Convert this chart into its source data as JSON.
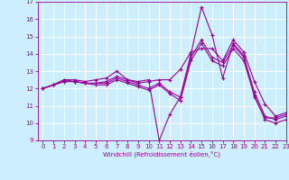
{
  "xlabel": "Windchill (Refroidissement éolien,°C)",
  "x": [
    0,
    1,
    2,
    3,
    4,
    5,
    6,
    7,
    8,
    9,
    10,
    11,
    12,
    13,
    14,
    15,
    16,
    17,
    18,
    19,
    20,
    21,
    22,
    23
  ],
  "line1": [
    12.0,
    12.2,
    12.5,
    12.5,
    12.4,
    12.5,
    12.6,
    13.0,
    12.5,
    12.4,
    12.5,
    9.0,
    10.5,
    11.5,
    14.0,
    16.7,
    15.1,
    12.6,
    14.6,
    13.9,
    11.5,
    10.3,
    10.3,
    10.5
  ],
  "line2": [
    12.0,
    12.2,
    12.5,
    12.4,
    12.3,
    12.3,
    12.3,
    12.6,
    12.4,
    12.2,
    12.0,
    12.3,
    11.8,
    11.5,
    13.8,
    14.8,
    13.8,
    13.5,
    14.5,
    13.8,
    11.8,
    10.4,
    10.2,
    10.4
  ],
  "line3": [
    12.0,
    12.2,
    12.4,
    12.4,
    12.3,
    12.3,
    12.4,
    12.7,
    12.5,
    12.3,
    12.4,
    12.5,
    12.5,
    13.1,
    14.1,
    14.3,
    14.3,
    13.6,
    14.8,
    14.1,
    12.4,
    11.1,
    10.4,
    10.6
  ],
  "line4": [
    12.0,
    12.2,
    12.4,
    12.4,
    12.3,
    12.2,
    12.2,
    12.5,
    12.3,
    12.1,
    11.9,
    12.2,
    11.7,
    11.3,
    13.6,
    14.6,
    13.6,
    13.3,
    14.3,
    13.6,
    11.6,
    10.2,
    10.0,
    10.2
  ],
  "line_color": "#990099",
  "background_color": "#cceeff",
  "grid_color": "#ffffff",
  "ylim": [
    9,
    17
  ],
  "xlim": [
    -0.5,
    23
  ],
  "yticks": [
    9,
    10,
    11,
    12,
    13,
    14,
    15,
    16,
    17
  ],
  "xticks": [
    0,
    1,
    2,
    3,
    4,
    5,
    6,
    7,
    8,
    9,
    10,
    11,
    12,
    13,
    14,
    15,
    16,
    17,
    18,
    19,
    20,
    21,
    22,
    23
  ],
  "marker": "+"
}
